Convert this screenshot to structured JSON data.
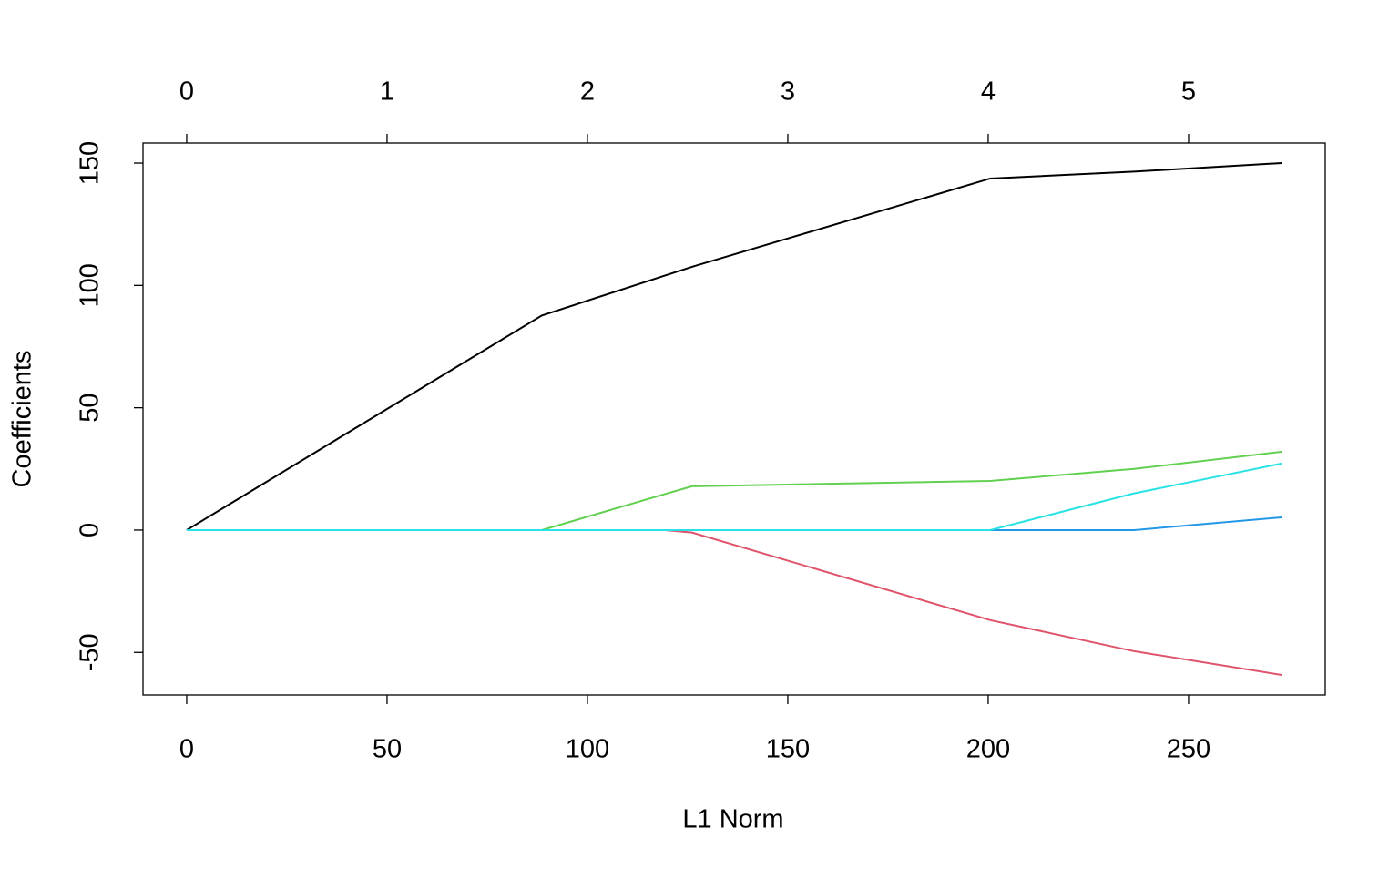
{
  "chart_data": {
    "type": "line",
    "x_label": "L1 Norm",
    "y_label": "Coefficients",
    "x": [
      0,
      88.6,
      119.3,
      126.1,
      200.5,
      236.4,
      273.2
    ],
    "series": [
      {
        "color": "#000000",
        "values": [
          0,
          87.7,
          104,
          107.6,
          143.7,
          146.5,
          150
        ]
      },
      {
        "color": "#DF536B",
        "values": [
          0,
          0,
          0,
          -1,
          -36.8,
          -49.5,
          -59.2
        ]
      },
      {
        "color": "#61D04F",
        "values": [
          0,
          0,
          14.7,
          17.9,
          20.1,
          25,
          32
        ]
      },
      {
        "color": "#2297E6",
        "values": [
          0,
          0,
          0,
          0,
          0,
          0,
          5.2
        ]
      },
      {
        "color": "#28E2E5",
        "values": [
          0,
          0,
          0,
          0,
          0,
          15,
          27.2
        ]
      }
    ],
    "xlim": [
      -10.9,
      284.1
    ],
    "ylim": [
      -67.4,
      158.2
    ],
    "xticks": [
      0,
      50,
      100,
      150,
      200,
      250
    ],
    "yticks": [
      -50,
      0,
      50,
      100,
      150
    ],
    "x2ticks": [
      {
        "value": 0,
        "label": "0"
      },
      {
        "value": 50,
        "label": "1"
      },
      {
        "value": 100,
        "label": "2"
      },
      {
        "value": 150,
        "label": "3"
      },
      {
        "value": 200,
        "label": "4"
      },
      {
        "value": 250,
        "label": "5"
      }
    ]
  }
}
